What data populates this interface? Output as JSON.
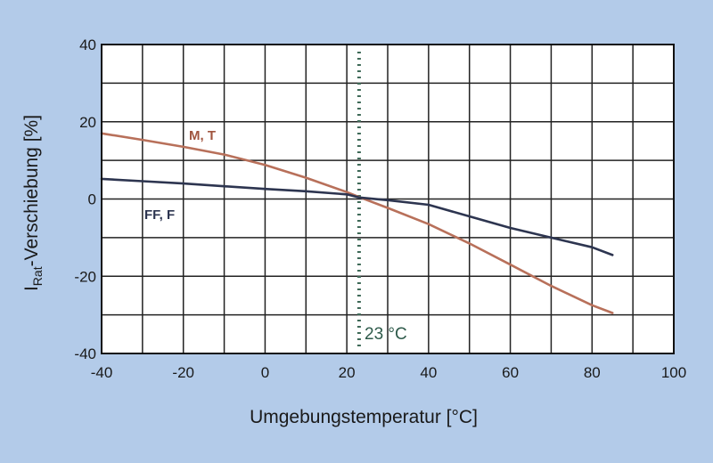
{
  "chart_data": {
    "type": "line",
    "xlabel": "Umgebungstemperatur [°C]",
    "ylabel_main": "I",
    "ylabel_sub": "Rat",
    "ylabel_rest": "-Verschiebung [%]",
    "xlim": [
      -40,
      100
    ],
    "ylim": [
      -40,
      40
    ],
    "x_ticks": [
      -40,
      -20,
      0,
      20,
      40,
      60,
      80,
      100
    ],
    "y_ticks": [
      40,
      20,
      0,
      -20,
      -40
    ],
    "grid": true,
    "reference_line": {
      "x": 23,
      "label": "23 °C"
    },
    "series": [
      {
        "name": "M, T",
        "color": "#b8705a",
        "points": [
          [
            -40,
            17
          ],
          [
            -30,
            15.3
          ],
          [
            -20,
            13.5
          ],
          [
            -10,
            11.5
          ],
          [
            0,
            8.8
          ],
          [
            10,
            5.5
          ],
          [
            20,
            1.8
          ],
          [
            23,
            0.5
          ],
          [
            30,
            -2.3
          ],
          [
            40,
            -6.5
          ],
          [
            50,
            -11.5
          ],
          [
            60,
            -17
          ],
          [
            70,
            -22.5
          ],
          [
            80,
            -27.5
          ],
          [
            85,
            -29.5
          ]
        ]
      },
      {
        "name": "FF, F",
        "color": "#2d3550",
        "points": [
          [
            -40,
            5.2
          ],
          [
            -30,
            4.6
          ],
          [
            -20,
            4
          ],
          [
            -10,
            3.3
          ],
          [
            0,
            2.6
          ],
          [
            10,
            2
          ],
          [
            20,
            1.2
          ],
          [
            23,
            0.4
          ],
          [
            30,
            -0.3
          ],
          [
            40,
            -1.5
          ],
          [
            50,
            -4.5
          ],
          [
            60,
            -7.5
          ],
          [
            70,
            -10
          ],
          [
            80,
            -12.5
          ],
          [
            85,
            -14.5
          ]
        ]
      }
    ]
  }
}
